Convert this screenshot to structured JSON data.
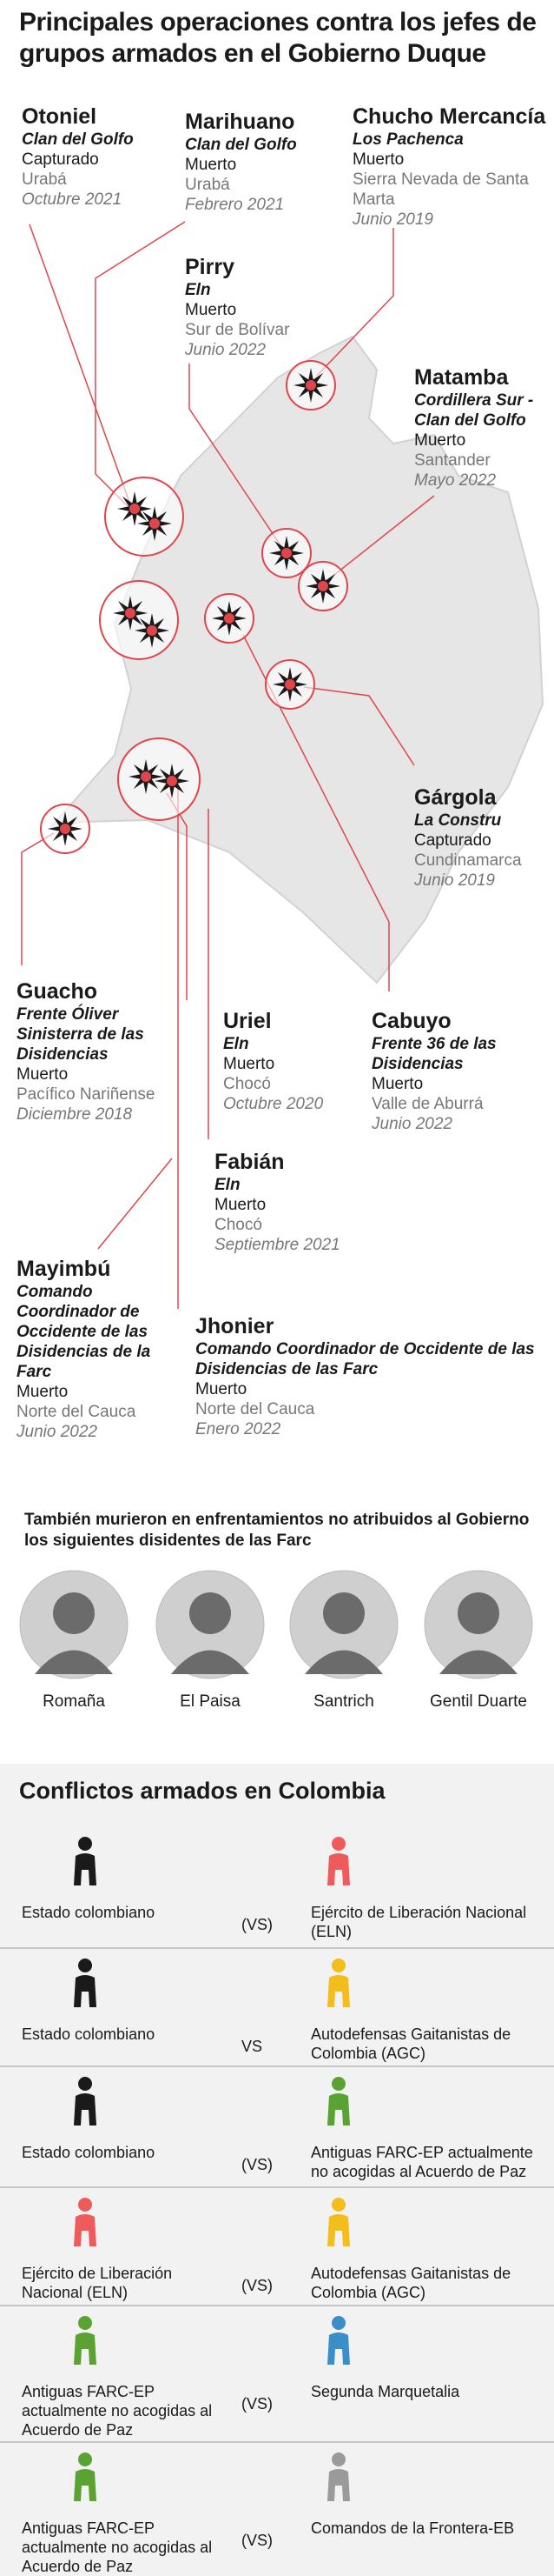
{
  "title": "Principales operaciones contra los jefes de grupos armados en el Gobierno Duque",
  "operations": [
    {
      "name": "Otoniel",
      "group": "Clan del Golfo",
      "status": "Capturado",
      "place": "Urabá",
      "date": "Octubre 2021"
    },
    {
      "name": "Marihuano",
      "group": "Clan del Golfo",
      "status": "Muerto",
      "place": "Urabá",
      "date": "Febrero 2021"
    },
    {
      "name": "Chucho Mercancía",
      "group": "Los Pachenca",
      "status": "Muerto",
      "place": "Sierra Nevada de Santa Marta",
      "date": "Junio 2019"
    },
    {
      "name": "Pirry",
      "group": "Eln",
      "status": "Muerto",
      "place": "Sur de Bolívar",
      "date": "Junio 2022"
    },
    {
      "name": "Matamba",
      "group": "Cordillera Sur - Clan del Golfo",
      "status": "Muerto",
      "place": "Santander",
      "date": "Mayo 2022"
    },
    {
      "name": "Gárgola",
      "group": "La Constru",
      "status": "Capturado",
      "place": "Cundinamarca",
      "date": "Junio 2019"
    },
    {
      "name": "Guacho",
      "group": "Frente Óliver Sinisterra de las Disidencias",
      "status": "Muerto",
      "place": "Pacífico Nariñense",
      "date": "Diciembre 2018"
    },
    {
      "name": "Uriel",
      "group": "Eln",
      "status": "Muerto",
      "place": "Chocó",
      "date": "Octubre 2020"
    },
    {
      "name": "Cabuyo",
      "group": "Frente 36 de las Disidencias",
      "status": "Muerto",
      "place": "Valle de Aburrá",
      "date": "Junio 2022"
    },
    {
      "name": "Fabián",
      "group": "Eln",
      "status": "Muerto",
      "place": "Chocó",
      "date": "Septiembre 2021"
    },
    {
      "name": "Mayimbú",
      "group": "Comando Coordinador de Occidente de las Disidencias de la Farc",
      "status": "Muerto",
      "place": "Norte del Cauca",
      "date": "Junio 2022"
    },
    {
      "name": "Jhonier",
      "group": "Comando Coordinador de Occidente de las Disidencias de las Farc",
      "status": "Muerto",
      "place": "Norte del Cauca",
      "date": "Enero 2022"
    }
  ],
  "note": "También murieron en enfrentamientos no atribuidos al Gobierno los siguientes disidentes de las Farc",
  "people": [
    "Romaña",
    "El Paisa",
    "Santrich",
    "Gentil Duarte"
  ],
  "conflicts": {
    "title": "Conflictos armados en Colombia",
    "rows": [
      {
        "left": {
          "name": "Estado colombiano",
          "color": "#1a1a1a"
        },
        "vs": "(VS)",
        "right": {
          "name": "Ejército de Liberación Nacional (ELN)",
          "color": "#ef5a5a"
        }
      },
      {
        "left": {
          "name": "Estado colombiano",
          "color": "#1a1a1a"
        },
        "vs": "VS",
        "right": {
          "name": "Autodefensas Gaitanistas de Colombia (AGC)",
          "color": "#f2bd1d"
        }
      },
      {
        "left": {
          "name": "Estado colombiano",
          "color": "#1a1a1a"
        },
        "vs": "(VS)",
        "right": {
          "name": "Antiguas FARC-EP actualmente no acogidas al Acuerdo de Paz",
          "color": "#5aa332"
        }
      },
      {
        "left": {
          "name": "Ejército de Liberación Nacional (ELN)",
          "color": "#ef5a5a"
        },
        "vs": "(VS)",
        "right": {
          "name": "Autodefensas Gaitanistas de Colombia (AGC)",
          "color": "#f2bd1d"
        }
      },
      {
        "left": {
          "name": "Antiguas FARC-EP actualmente no acogidas al Acuerdo de Paz",
          "color": "#5aa332"
        },
        "vs": "(VS)",
        "right": {
          "name": "Segunda Marquetalia",
          "color": "#3a8fc8"
        }
      },
      {
        "left": {
          "name": "Antiguas FARC-EP actualmente no acogidas al Acuerdo de Paz",
          "color": "#5aa332"
        },
        "vs": "(VS)",
        "right": {
          "name": "Comandos de la Frontera-EB",
          "color": "#9a9a9a"
        }
      }
    ]
  }
}
